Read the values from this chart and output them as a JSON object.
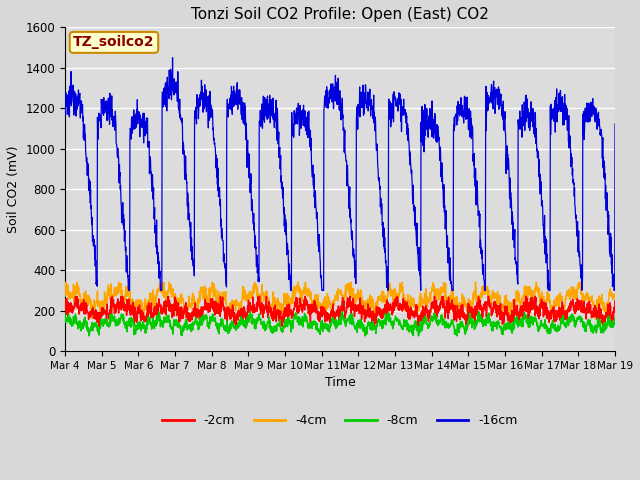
{
  "title": "Tonzi Soil CO2 Profile: Open (East) CO2",
  "ylabel": "Soil CO2 (mV)",
  "xlabel": "Time",
  "watermark": "TZ_soilco2",
  "ylim": [
    0,
    1600
  ],
  "yticks": [
    0,
    200,
    400,
    600,
    800,
    1000,
    1200,
    1400,
    1600
  ],
  "xtick_labels": [
    "Mar 4",
    "Mar 5",
    "Mar 6",
    "Mar 7",
    "Mar 8",
    "Mar 9",
    "Mar 10",
    "Mar 11",
    "Mar 12",
    "Mar 13",
    "Mar 14",
    "Mar 15",
    "Mar 16",
    "Mar 17",
    "Mar 18",
    "Mar 19"
  ],
  "colors": {
    "2cm": "#ff0000",
    "4cm": "#ffa500",
    "8cm": "#00cc00",
    "16cm": "#0000dd"
  },
  "legend_labels": [
    "-2cm",
    "-4cm",
    "-8cm",
    "-16cm"
  ],
  "fig_facecolor": "#d8d8d8",
  "plot_bg": "#dcdcdc",
  "title_fontsize": 11,
  "axis_fontsize": 9,
  "legend_fontsize": 9,
  "watermark_fontsize": 10,
  "watermark_color": "#8B0000",
  "watermark_bg": "#ffffcc",
  "watermark_edge": "#cc8800"
}
